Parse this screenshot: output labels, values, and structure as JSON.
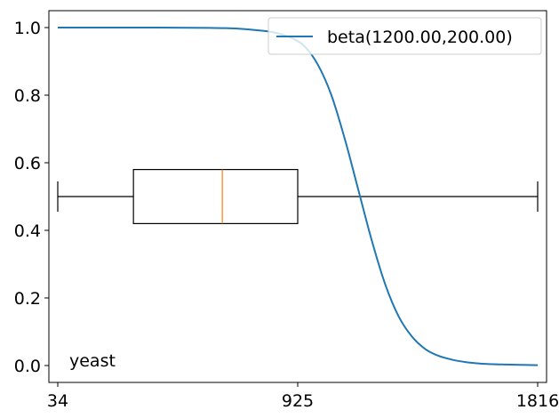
{
  "chart_data": {
    "type": "line",
    "title": "",
    "xlabel": "",
    "ylabel": "",
    "xlim": [
      1,
      1849
    ],
    "ylim": [
      -0.05,
      1.05
    ],
    "x_ticks": [
      34,
      925,
      1816
    ],
    "y_ticks": [
      0.0,
      0.2,
      0.4,
      0.6,
      0.8,
      1.0
    ],
    "x_tick_labels": [
      "34",
      "925",
      "1816"
    ],
    "y_tick_labels": [
      "0.0",
      "0.2",
      "0.4",
      "0.6",
      "0.8",
      "1.0"
    ],
    "grid": false,
    "legend_position": "top-right",
    "series": [
      {
        "name": "beta(1200.00,200.00)",
        "color": "#1f77b4",
        "x": [
          34,
          200,
          400,
          600,
          700,
          800,
          850,
          900,
          950,
          1000,
          1050,
          1100,
          1150,
          1200,
          1250,
          1300,
          1350,
          1400,
          1450,
          1500,
          1550,
          1600,
          1650,
          1700,
          1750,
          1816
        ],
        "y": [
          1.0,
          1.0,
          1.0,
          0.999,
          0.997,
          0.99,
          0.983,
          0.97,
          0.945,
          0.89,
          0.8,
          0.67,
          0.52,
          0.37,
          0.24,
          0.145,
          0.085,
          0.048,
          0.028,
          0.017,
          0.01,
          0.006,
          0.004,
          0.003,
          0.002,
          0.001
        ]
      }
    ],
    "boxplot": {
      "orientation": "horizontal",
      "position": 0.5,
      "whisker_low": 34,
      "q1": 315,
      "median": 645,
      "q3": 925,
      "whisker_high": 1816,
      "box_half_height": 0.08,
      "cap_half_height": 0.045,
      "color": "#000000",
      "median_color": "#ff7f0e"
    },
    "annotations": [
      {
        "text": "yeast",
        "position": "bottom-left"
      }
    ]
  }
}
